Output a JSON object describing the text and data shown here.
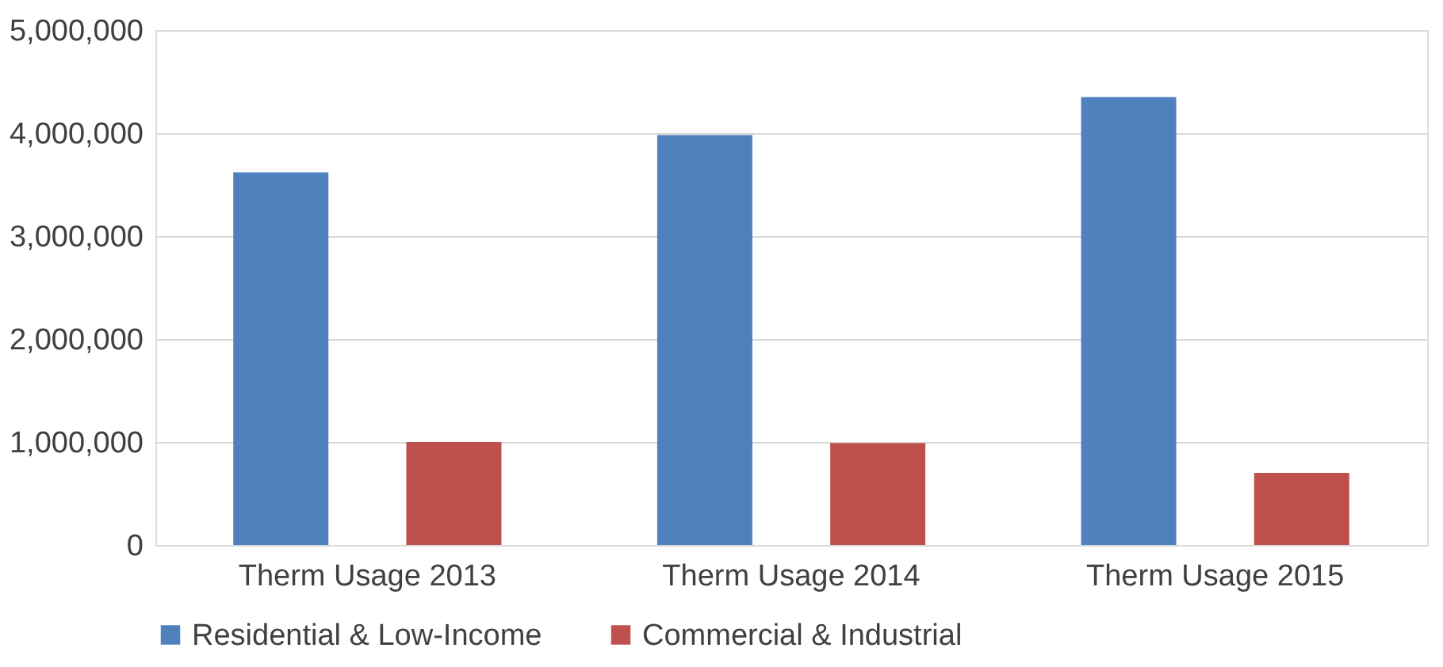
{
  "chart_data": {
    "type": "bar",
    "categories": [
      "Therm Usage 2013",
      "Therm Usage 2014",
      "Therm Usage 2015"
    ],
    "series": [
      {
        "name": "Residential & Low-Income",
        "color": "#4f81bd",
        "values": [
          3620000,
          3980000,
          4350000
        ]
      },
      {
        "name": "Commercial & Industrial",
        "color": "#c0504d",
        "values": [
          1000000,
          990000,
          700000
        ]
      }
    ],
    "ylim": [
      0,
      5000000
    ],
    "yticks": [
      {
        "value": 0,
        "label": "0"
      },
      {
        "value": 1000000,
        "label": "1,000,000"
      },
      {
        "value": 2000000,
        "label": "2,000,000"
      },
      {
        "value": 3000000,
        "label": "3,000,000"
      },
      {
        "value": 4000000,
        "label": "4,000,000"
      },
      {
        "value": 5000000,
        "label": "5,000,000"
      }
    ],
    "grid": "y",
    "legend": "bottom"
  }
}
